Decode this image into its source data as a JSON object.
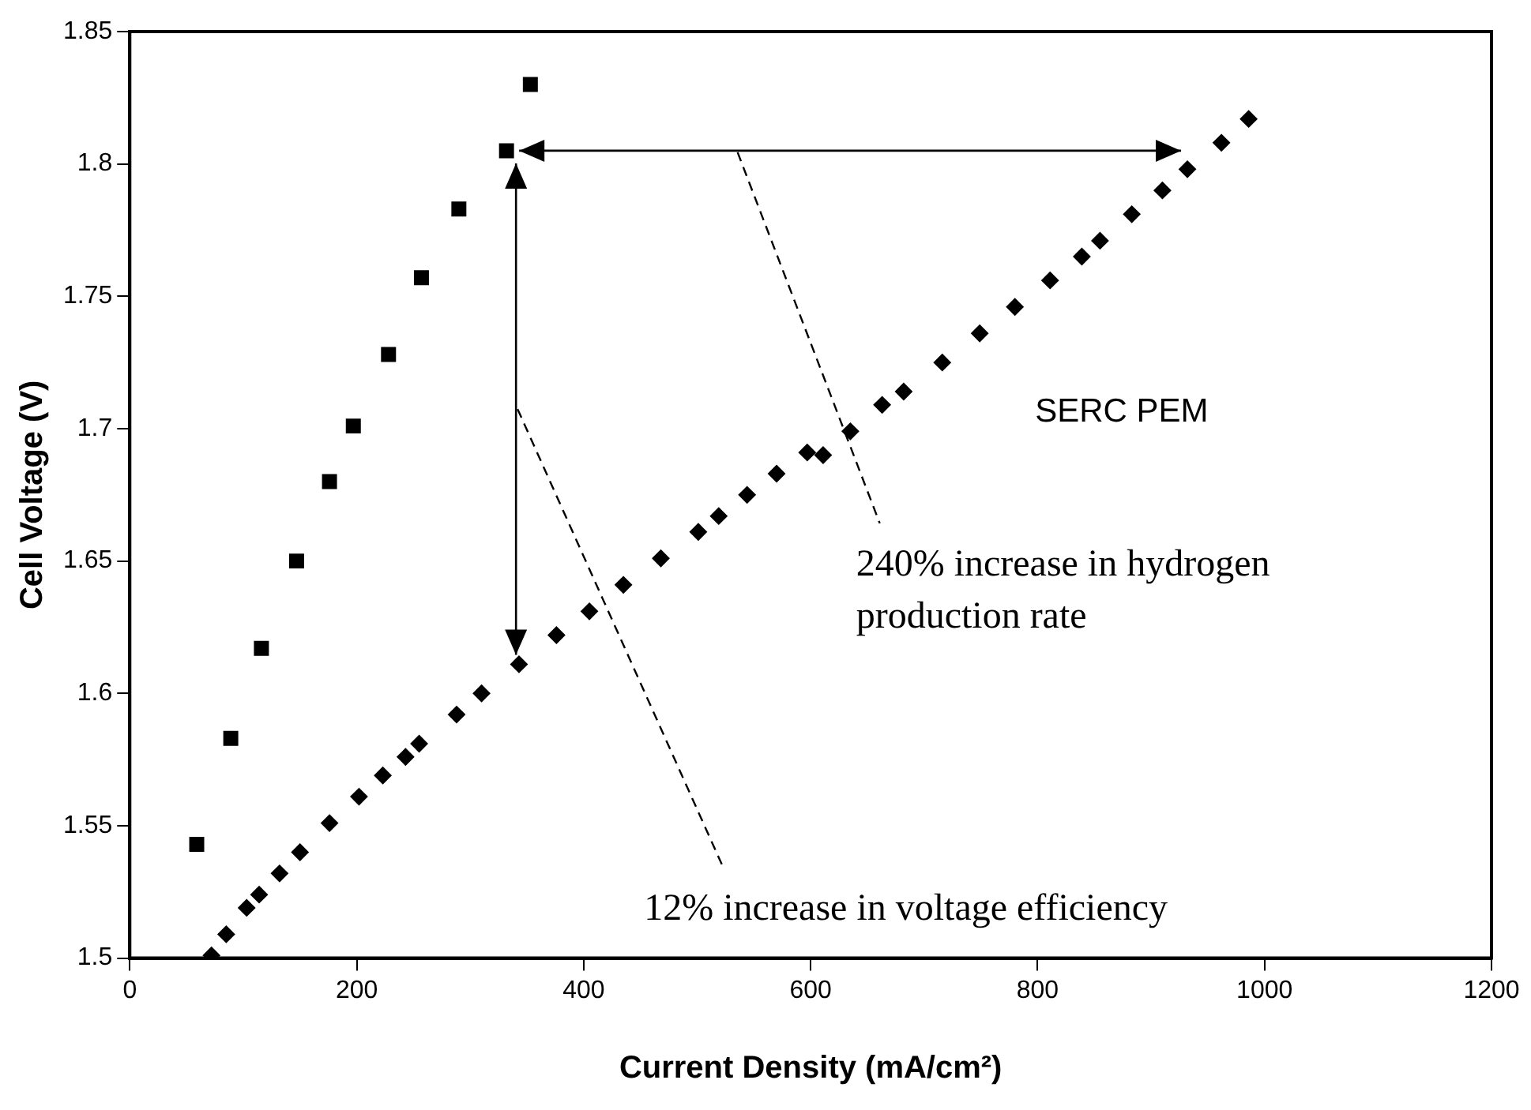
{
  "chart_data": {
    "type": "scatter",
    "xlabel": "Current Density (mA/cm²)",
    "ylabel": "Cell Voltage (V)",
    "xlim": [
      0,
      1200
    ],
    "xticks": [
      0,
      200,
      400,
      600,
      800,
      1000,
      1200
    ],
    "ylim": [
      1.5,
      1.85
    ],
    "yticks": [
      1.5,
      1.55,
      1.6,
      1.65,
      1.7,
      1.75,
      1.8,
      1.85
    ],
    "grid": false,
    "legend": false,
    "series": [
      {
        "color": "#000000",
        "marker": "square",
        "x": [
          59,
          89,
          116,
          147,
          176,
          197,
          228,
          257,
          290,
          332,
          353
        ],
        "values": [
          1.543,
          1.583,
          1.617,
          1.65,
          1.68,
          1.701,
          1.728,
          1.757,
          1.783,
          1.805,
          1.83
        ]
      },
      {
        "name": "SERC PEM",
        "color": "#000000",
        "marker": "diamond",
        "x": [
          72,
          85,
          103,
          114,
          132,
          150,
          176,
          202,
          223,
          243,
          255,
          288,
          310,
          343,
          376,
          405,
          435,
          468,
          501,
          519,
          544,
          570,
          597,
          611,
          635,
          663,
          682,
          716,
          749,
          780,
          811,
          839,
          855,
          883,
          910,
          932,
          962,
          986
        ],
        "values": [
          1.501,
          1.509,
          1.519,
          1.524,
          1.532,
          1.54,
          1.551,
          1.561,
          1.569,
          1.576,
          1.581,
          1.592,
          1.6,
          1.611,
          1.622,
          1.631,
          1.641,
          1.651,
          1.661,
          1.667,
          1.675,
          1.683,
          1.691,
          1.69,
          1.699,
          1.709,
          1.714,
          1.725,
          1.736,
          1.746,
          1.756,
          1.765,
          1.771,
          1.781,
          1.79,
          1.798,
          1.808,
          1.817
        ]
      }
    ],
    "annotations": [
      "240% increase in hydrogen\nproduction rate",
      "12% increase in voltage efficiency"
    ]
  }
}
